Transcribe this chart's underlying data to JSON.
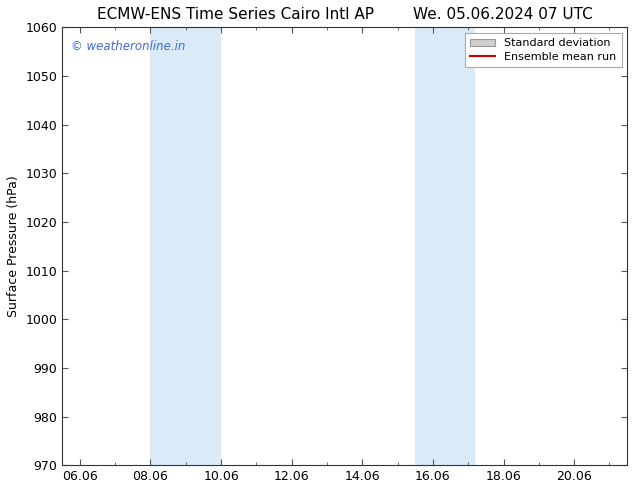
{
  "title_left": "ECMW-ENS Time Series Cairo Intl AP",
  "title_right": "We. 05.06.2024 07 UTC",
  "ylabel": "Surface Pressure (hPa)",
  "ylim": [
    970,
    1060
  ],
  "yticks": [
    970,
    980,
    990,
    1000,
    1010,
    1020,
    1030,
    1040,
    1050,
    1060
  ],
  "xlim_start": 5.5,
  "xlim_end": 21.5,
  "xtick_labels": [
    "06.06",
    "08.06",
    "10.06",
    "12.06",
    "14.06",
    "16.06",
    "18.06",
    "20.06"
  ],
  "xtick_positions": [
    6.0,
    8.0,
    10.0,
    12.0,
    14.0,
    16.0,
    18.0,
    20.0
  ],
  "shaded_regions": [
    {
      "xmin": 8.0,
      "xmax": 10.0,
      "color": "#daeaf7"
    },
    {
      "xmin": 15.5,
      "xmax": 17.2,
      "color": "#daeaf7"
    }
  ],
  "watermark_text": "© weatheronline.in",
  "watermark_color": "#4169e1",
  "legend_std_dev_color": "#d0d0d0",
  "legend_mean_color": "#cc0000",
  "background_color": "#ffffff",
  "title_fontsize": 11,
  "axis_label_fontsize": 9,
  "tick_fontsize": 9
}
